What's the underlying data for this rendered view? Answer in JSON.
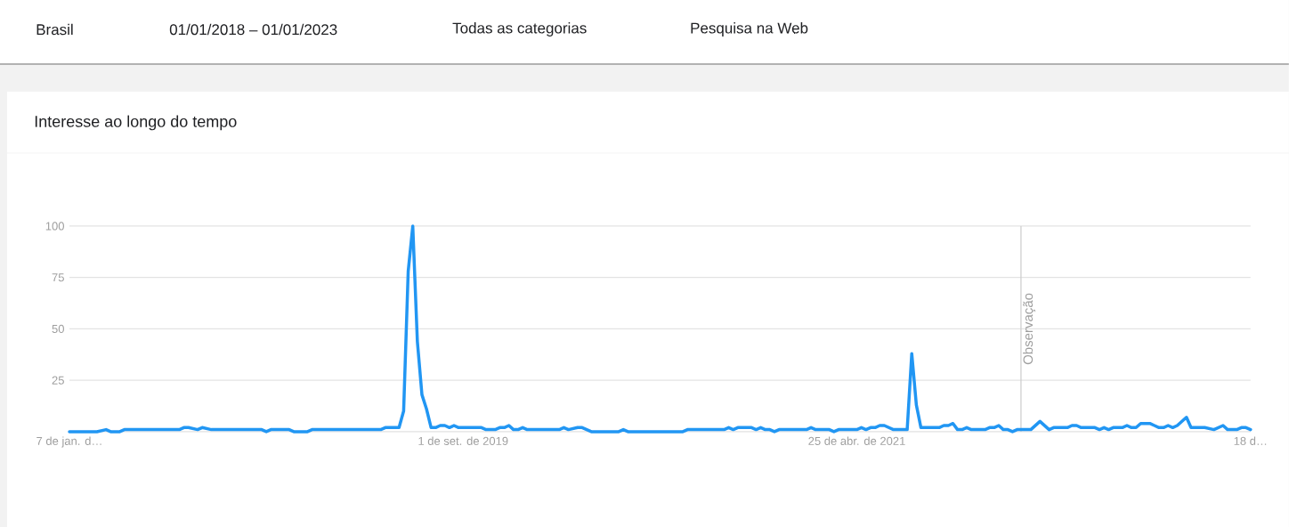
{
  "chart_data": {
    "type": "line",
    "title": "Interesse ao longo do tempo",
    "annotations": [
      "Brasil",
      "01/01/2018 – 01/01/2023",
      "Todas as categorias",
      "Pesquisa na Web"
    ],
    "x": [
      "2018-01-07",
      "2018-02-18",
      "2018-03-04",
      "2018-03-11",
      "2018-03-25",
      "2018-04-01",
      "2018-06-24",
      "2018-07-01",
      "2018-07-08",
      "2018-07-22",
      "2018-07-29",
      "2018-08-12",
      "2018-10-28",
      "2018-11-04",
      "2018-11-11",
      "2018-12-09",
      "2018-12-16",
      "2019-01-06",
      "2019-01-13",
      "2019-04-28",
      "2019-05-05",
      "2019-05-26",
      "2019-06-02",
      "2019-06-09",
      "2019-06-16",
      "2019-06-23",
      "2019-06-30",
      "2019-07-07",
      "2019-07-14",
      "2019-07-21",
      "2019-07-28",
      "2019-08-04",
      "2019-08-11",
      "2019-08-18",
      "2019-08-25",
      "2019-09-29",
      "2019-10-06",
      "2019-10-20",
      "2019-10-27",
      "2019-11-03",
      "2019-11-10",
      "2019-11-17",
      "2019-11-24",
      "2019-12-01",
      "2019-12-08",
      "2020-01-26",
      "2020-02-02",
      "2020-02-09",
      "2020-02-23",
      "2020-03-01",
      "2020-03-15",
      "2020-04-26",
      "2020-05-03",
      "2020-05-10",
      "2020-08-02",
      "2020-08-09",
      "2020-10-04",
      "2020-10-11",
      "2020-10-18",
      "2020-10-25",
      "2020-11-15",
      "2020-11-22",
      "2020-11-29",
      "2020-12-06",
      "2020-12-13",
      "2020-12-20",
      "2020-12-27",
      "2021-02-07",
      "2021-02-14",
      "2021-02-21",
      "2021-03-14",
      "2021-03-21",
      "2021-03-28",
      "2021-04-25",
      "2021-05-02",
      "2021-05-09",
      "2021-05-16",
      "2021-05-23",
      "2021-05-30",
      "2021-06-06",
      "2021-06-20",
      "2021-07-11",
      "2021-07-18",
      "2021-07-25",
      "2021-08-01",
      "2021-08-29",
      "2021-09-05",
      "2021-09-12",
      "2021-09-19",
      "2021-09-26",
      "2021-10-03",
      "2021-10-10",
      "2021-10-17",
      "2021-11-07",
      "2021-11-14",
      "2021-11-21",
      "2021-11-28",
      "2021-12-05",
      "2021-12-12",
      "2021-12-19",
      "2021-12-26",
      "2022-01-16",
      "2022-01-30",
      "2022-02-13",
      "2022-02-20",
      "2022-03-13",
      "2022-03-20",
      "2022-03-27",
      "2022-04-03",
      "2022-04-24",
      "2022-05-01",
      "2022-05-08",
      "2022-05-15",
      "2022-05-22",
      "2022-06-05",
      "2022-06-12",
      "2022-06-19",
      "2022-06-26",
      "2022-07-03",
      "2022-07-17",
      "2022-07-24",
      "2022-07-31",
      "2022-08-07",
      "2022-08-14",
      "2022-08-21",
      "2022-08-28",
      "2022-09-11",
      "2022-09-18",
      "2022-10-09",
      "2022-10-23",
      "2022-11-06",
      "2022-11-13",
      "2022-11-27",
      "2022-12-04",
      "2022-12-11",
      "2022-12-18"
    ],
    "series": [
      {
        "color": "#2196f3",
        "values": [
          0,
          0,
          1,
          0,
          0,
          1,
          1,
          2,
          2,
          1,
          2,
          1,
          1,
          0,
          1,
          1,
          0,
          0,
          1,
          1,
          2,
          2,
          10,
          78,
          100,
          44,
          18,
          11,
          2,
          2,
          3,
          3,
          2,
          3,
          2,
          2,
          1,
          1,
          2,
          2,
          3,
          1,
          1,
          2,
          1,
          1,
          2,
          1,
          2,
          2,
          0,
          0,
          1,
          0,
          0,
          1,
          1,
          2,
          1,
          2,
          2,
          1,
          2,
          1,
          1,
          0,
          1,
          1,
          2,
          1,
          1,
          0,
          1,
          1,
          2,
          1,
          2,
          2,
          3,
          3,
          1,
          1,
          38,
          13,
          2,
          2,
          3,
          3,
          4,
          1,
          1,
          2,
          1,
          1,
          2,
          2,
          3,
          1,
          1,
          0,
          1,
          1,
          5,
          1,
          2,
          2,
          3,
          3,
          2,
          2,
          1,
          2,
          1,
          2,
          2,
          3,
          2,
          2,
          4,
          4,
          3,
          2,
          2,
          3,
          2,
          3,
          7,
          2,
          2,
          1,
          3,
          1,
          1,
          2,
          2,
          1
        ]
      }
    ],
    "xlim": [
      "2018-01-07",
      "2022-12-18"
    ],
    "xticks": [
      {
        "value": "2018-01-07",
        "label": "7 de jan. d…"
      },
      {
        "value": "2019-09-01",
        "label": "1 de set. de 2019"
      },
      {
        "value": "2021-04-25",
        "label": "25 de abr. de 2021"
      },
      {
        "value": "2022-12-18",
        "label": "18 d…"
      }
    ],
    "ylim": [
      0,
      100
    ],
    "yticks": [
      25,
      50,
      75,
      100
    ],
    "grid": "y",
    "ref_lines": [
      {
        "axis": "x",
        "value": "2022-01-01",
        "label": "Observação",
        "color": "#cccccc"
      }
    ]
  }
}
